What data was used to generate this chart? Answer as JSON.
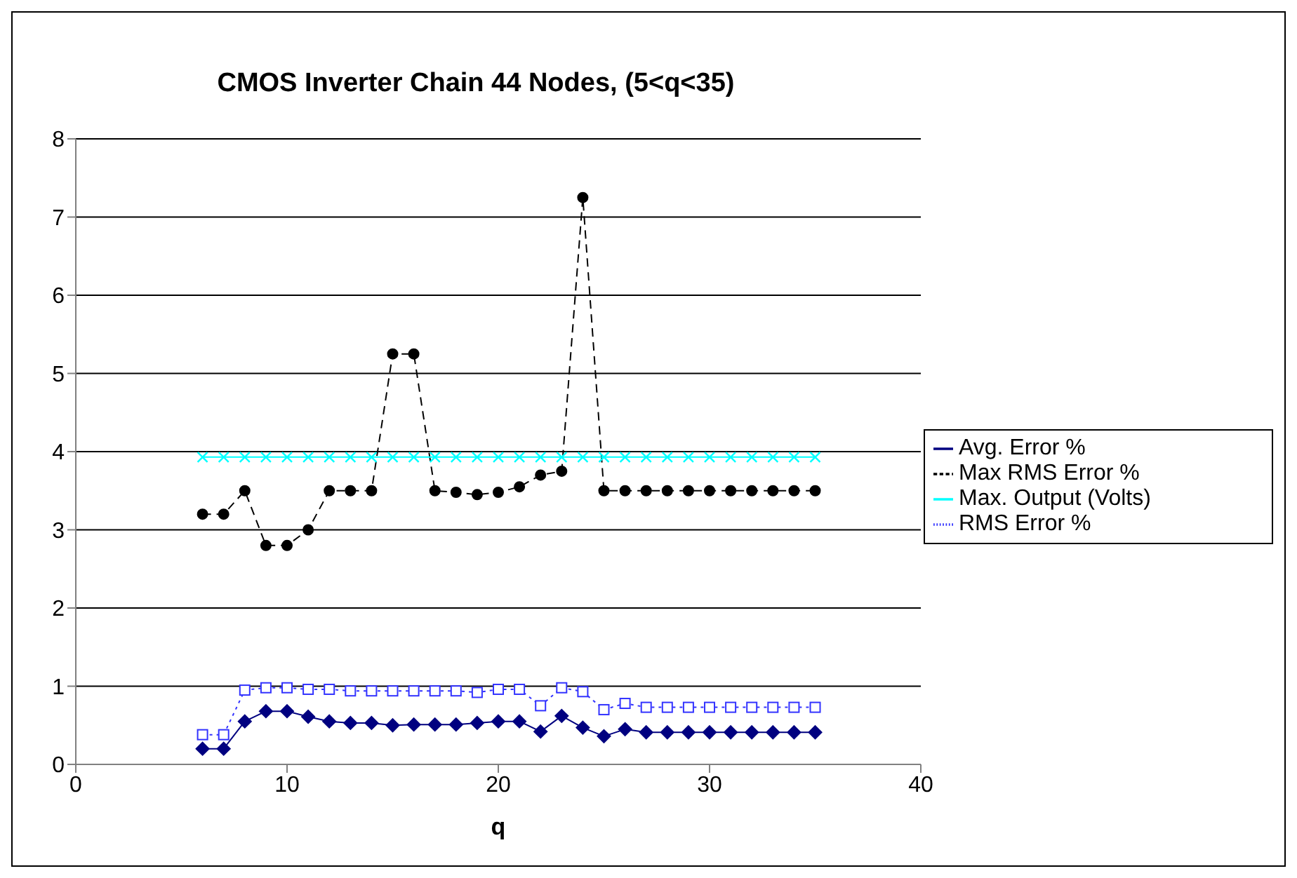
{
  "chart_data": {
    "type": "line",
    "title": "CMOS Inverter Chain 44 Nodes, (5<q<35)",
    "xlabel": "q",
    "x": [
      6,
      7,
      8,
      9,
      10,
      11,
      12,
      13,
      14,
      15,
      16,
      17,
      18,
      19,
      20,
      21,
      22,
      23,
      24,
      25,
      26,
      27,
      28,
      29,
      30,
      31,
      32,
      33,
      34,
      35
    ],
    "series": [
      {
        "name": "Avg. Error %",
        "color": "#000080",
        "marker": "diamond",
        "line_style": "solid",
        "values": [
          0.2,
          0.2,
          0.55,
          0.68,
          0.68,
          0.61,
          0.55,
          0.53,
          0.53,
          0.5,
          0.51,
          0.51,
          0.51,
          0.53,
          0.55,
          0.55,
          0.42,
          0.62,
          0.47,
          0.36,
          0.45,
          0.41,
          0.41,
          0.41,
          0.41,
          0.41,
          0.41,
          0.41,
          0.41,
          0.41
        ]
      },
      {
        "name": "RMS Error %",
        "color": "#3333ff",
        "marker": "square",
        "line_style": "dotted",
        "values": [
          0.38,
          0.38,
          0.95,
          0.98,
          0.98,
          0.96,
          0.96,
          0.94,
          0.94,
          0.94,
          0.94,
          0.94,
          0.94,
          0.92,
          0.96,
          0.96,
          0.75,
          0.98,
          0.93,
          0.7,
          0.78,
          0.73,
          0.73,
          0.73,
          0.73,
          0.73,
          0.73,
          0.73,
          0.73,
          0.73
        ]
      },
      {
        "name": "Max RMS Error %",
        "color": "#000000",
        "marker": "circle",
        "line_style": "dashed",
        "values": [
          3.2,
          3.2,
          3.5,
          2.8,
          2.8,
          3.0,
          3.5,
          3.5,
          3.5,
          5.25,
          5.25,
          3.5,
          3.48,
          3.45,
          3.48,
          3.55,
          3.7,
          3.75,
          7.25,
          3.5,
          3.5,
          3.5,
          3.5,
          3.5,
          3.5,
          3.5,
          3.5,
          3.5,
          3.5,
          3.5
        ]
      },
      {
        "name": "Max. Output (Volts)",
        "color": "#00ffff",
        "marker": "cross",
        "line_style": "solid",
        "values": [
          3.93,
          3.93,
          3.93,
          3.93,
          3.93,
          3.93,
          3.93,
          3.93,
          3.93,
          3.93,
          3.93,
          3.93,
          3.93,
          3.93,
          3.93,
          3.93,
          3.93,
          3.93,
          3.93,
          3.93,
          3.93,
          3.93,
          3.93,
          3.93,
          3.93,
          3.93,
          3.93,
          3.93,
          3.93,
          3.93
        ]
      }
    ],
    "xlim": [
      0,
      40
    ],
    "xticks": [
      0,
      10,
      20,
      30,
      40
    ],
    "ylim": [
      0,
      8
    ],
    "yticks": [
      0,
      1,
      2,
      3,
      4,
      5,
      6,
      7,
      8
    ],
    "grid": "y",
    "legend": "right"
  }
}
